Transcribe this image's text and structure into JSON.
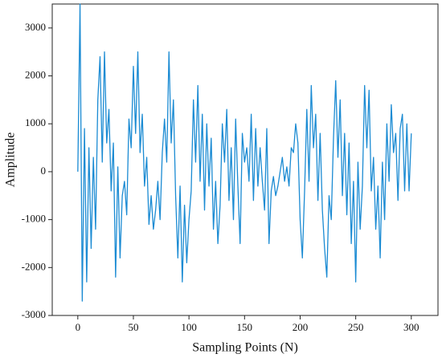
{
  "chart_data": {
    "type": "line",
    "xlabel": "Sampling Points (N)",
    "ylabel": "Amplitude",
    "xlim": [
      -23,
      324
    ],
    "ylim": [
      -3000,
      3500
    ],
    "xticks": [
      0,
      50,
      100,
      150,
      200,
      250,
      300
    ],
    "yticks": [
      -3000,
      -2000,
      -1000,
      0,
      1000,
      2000,
      3000
    ],
    "x": [
      0,
      2,
      4,
      6,
      8,
      10,
      12,
      14,
      16,
      18,
      20,
      22,
      24,
      26,
      28,
      30,
      32,
      34,
      36,
      38,
      40,
      42,
      44,
      46,
      48,
      50,
      52,
      54,
      56,
      58,
      60,
      62,
      64,
      66,
      68,
      70,
      72,
      74,
      76,
      78,
      80,
      82,
      84,
      86,
      88,
      90,
      92,
      94,
      96,
      98,
      100,
      102,
      104,
      106,
      108,
      110,
      112,
      114,
      116,
      118,
      120,
      122,
      124,
      126,
      128,
      130,
      132,
      134,
      136,
      138,
      140,
      142,
      144,
      146,
      148,
      150,
      152,
      154,
      156,
      158,
      160,
      162,
      164,
      166,
      168,
      170,
      172,
      174,
      176,
      178,
      180,
      182,
      184,
      186,
      188,
      190,
      192,
      194,
      196,
      198,
      200,
      202,
      204,
      206,
      208,
      210,
      212,
      214,
      216,
      218,
      220,
      222,
      224,
      226,
      228,
      230,
      232,
      234,
      236,
      238,
      240,
      242,
      244,
      246,
      248,
      250,
      252,
      254,
      256,
      258,
      260,
      262,
      264,
      266,
      268,
      270,
      272,
      274,
      276,
      278,
      280,
      282,
      284,
      286,
      288,
      290,
      292,
      294,
      296,
      298,
      300
    ],
    "series": [
      {
        "name": "Amplitude",
        "color": "#1b8bd3",
        "values": [
          0,
          3500,
          -2700,
          900,
          -2300,
          500,
          -1600,
          300,
          -1200,
          1500,
          2400,
          200,
          2500,
          600,
          1300,
          -400,
          600,
          -2200,
          100,
          -1800,
          -500,
          -200,
          -900,
          1100,
          500,
          2200,
          800,
          2500,
          400,
          1200,
          -300,
          300,
          -1100,
          -500,
          -1200,
          -800,
          -200,
          -1000,
          400,
          1100,
          200,
          2500,
          600,
          1500,
          -500,
          -1800,
          -300,
          -2300,
          -700,
          -1900,
          -1000,
          -400,
          1500,
          200,
          1800,
          -200,
          1200,
          -800,
          1000,
          -300,
          700,
          -1200,
          -200,
          -1500,
          -700,
          1000,
          200,
          1300,
          -600,
          500,
          -1000,
          1100,
          -300,
          -1500,
          800,
          200,
          500,
          -200,
          1200,
          -600,
          900,
          -300,
          500,
          -200,
          -800,
          900,
          -1500,
          -400,
          -100,
          -500,
          -300,
          0,
          300,
          -200,
          100,
          -300,
          500,
          400,
          1000,
          600,
          -1000,
          -1800,
          -400,
          1300,
          -200,
          1800,
          500,
          1200,
          -600,
          800,
          -800,
          -1600,
          -2200,
          -500,
          -1000,
          700,
          1900,
          300,
          1500,
          -500,
          800,
          -900,
          600,
          -1500,
          -200,
          -2300,
          200,
          -1200,
          -300,
          1800,
          500,
          1700,
          -400,
          300,
          -1200,
          -300,
          -1800,
          200,
          -1000,
          1000,
          -200,
          1400,
          400,
          800,
          -600,
          900,
          1200,
          -400,
          1000,
          -400,
          800
        ]
      }
    ]
  }
}
